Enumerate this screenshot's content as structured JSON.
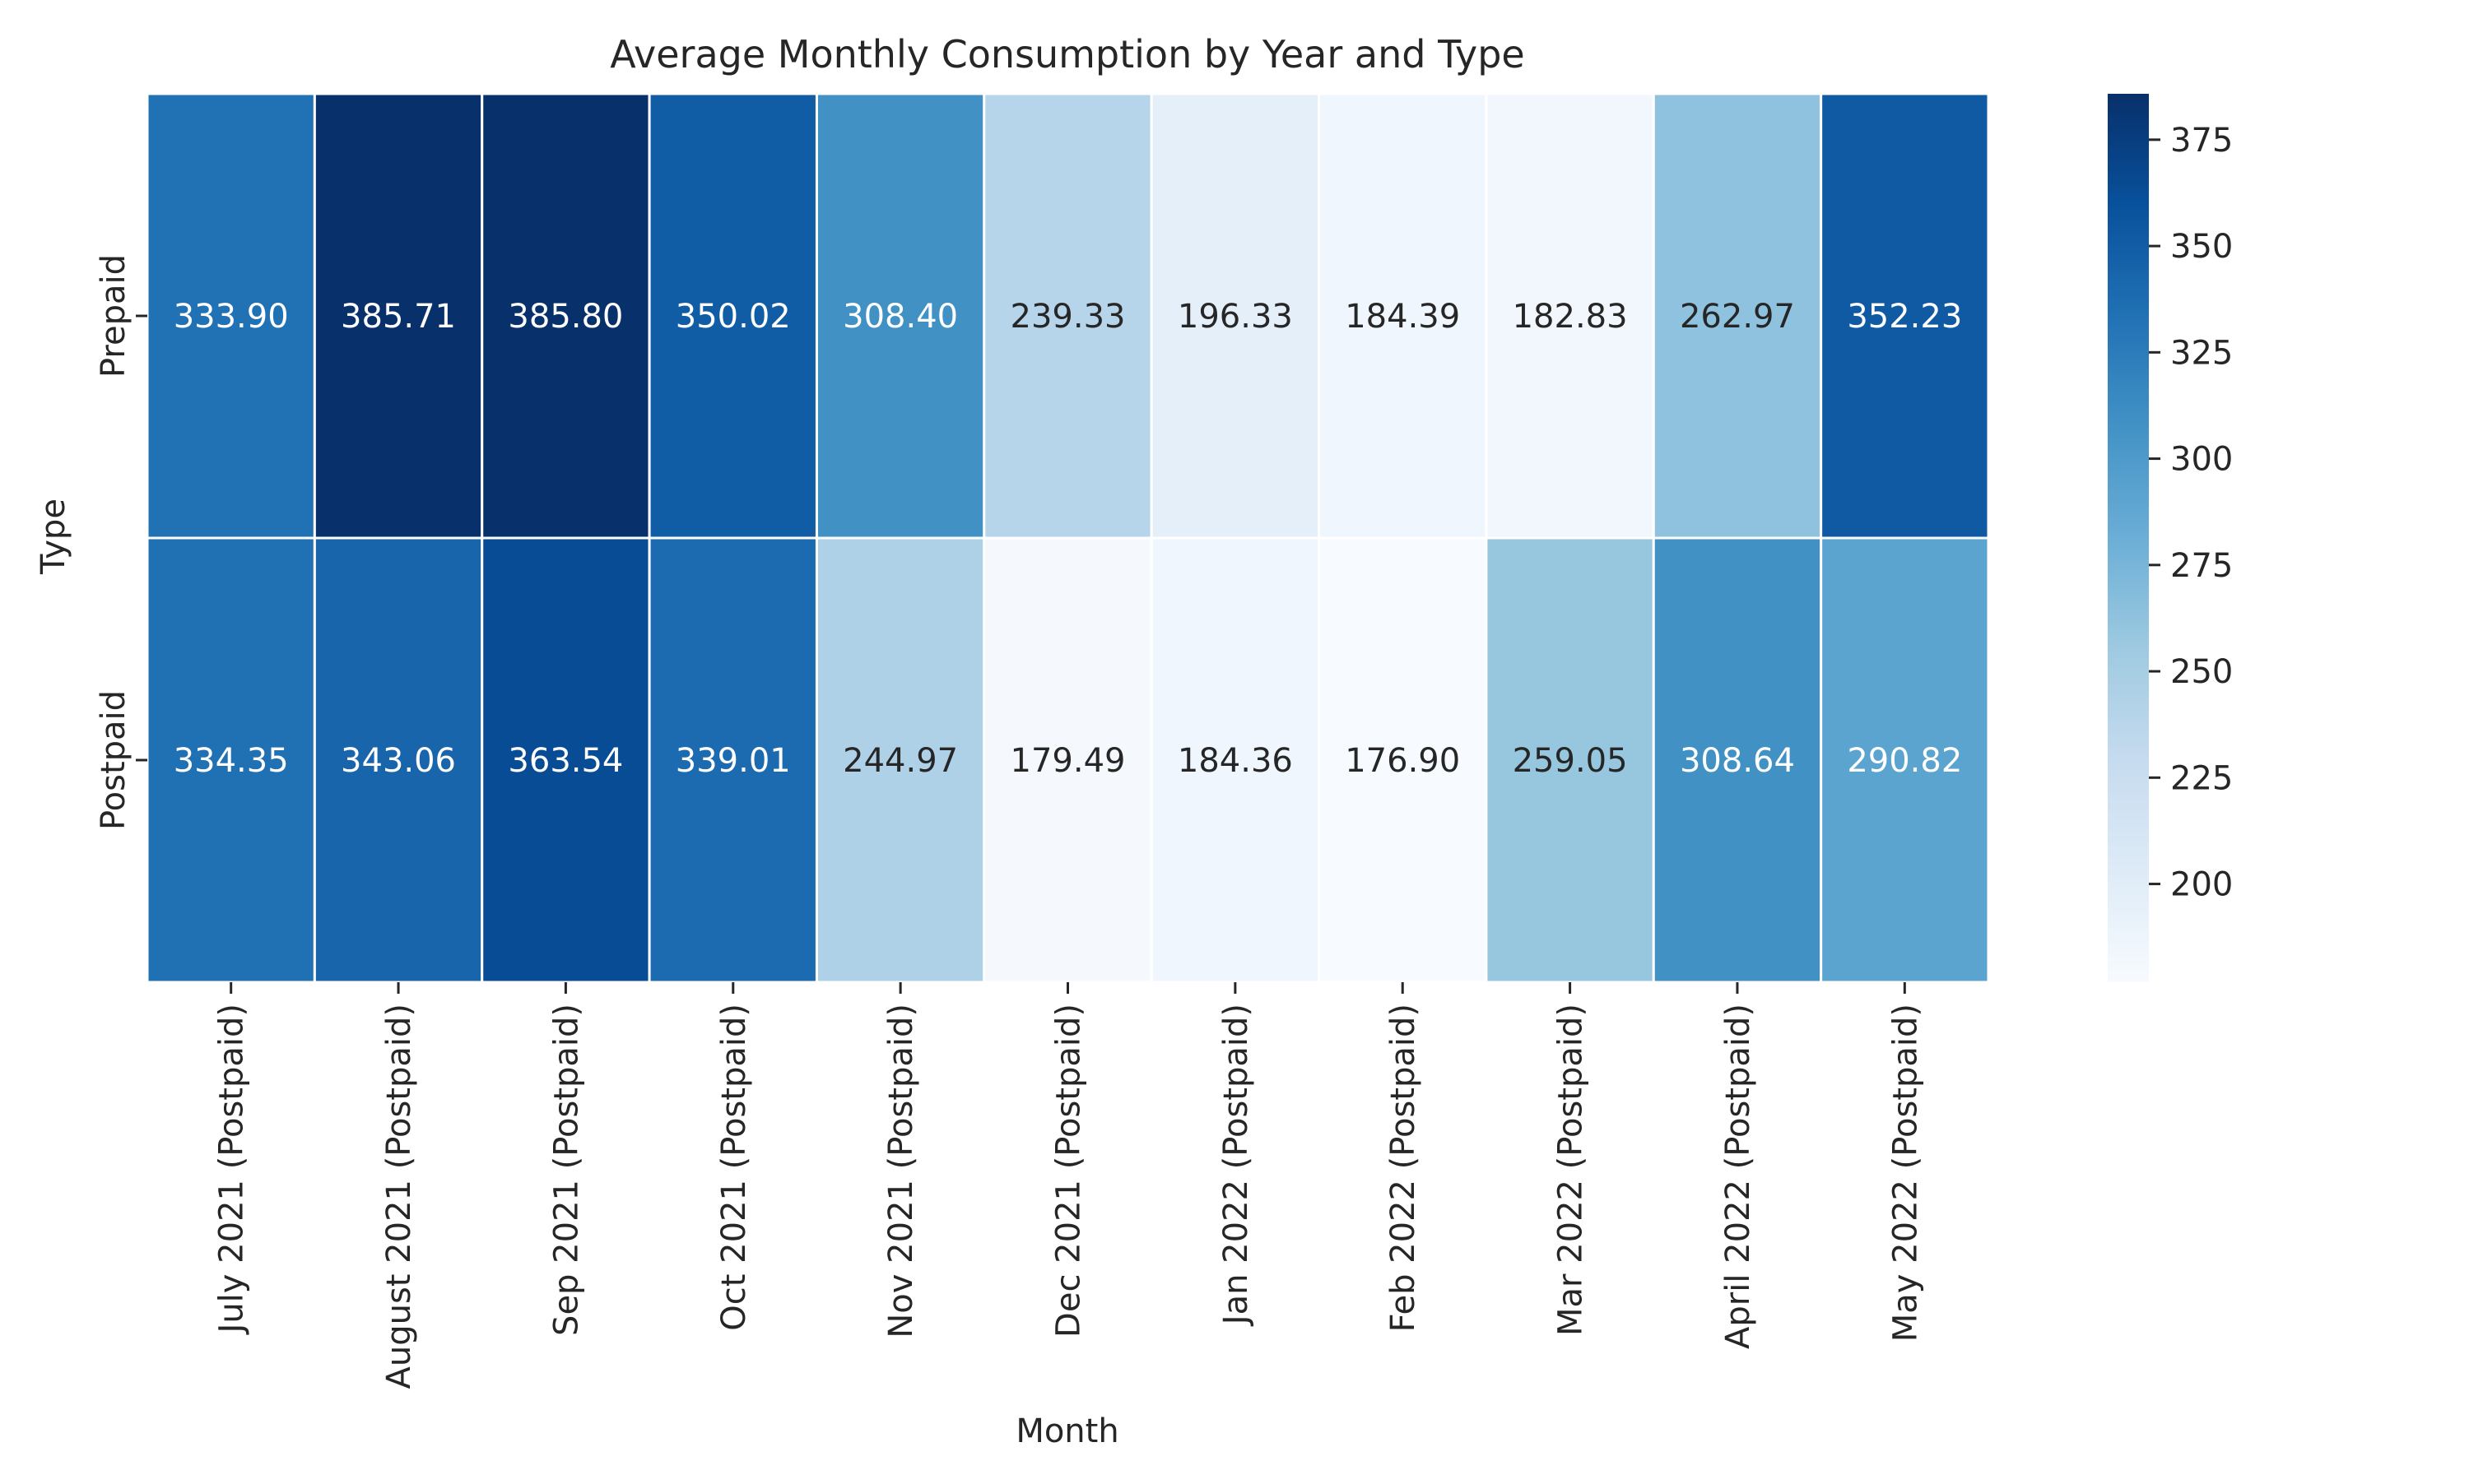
{
  "chart_data": {
    "type": "heatmap",
    "title": "Average Monthly Consumption by Year and Type",
    "xlabel": "Month",
    "ylabel": "Type",
    "rows": [
      "Prepaid",
      "Postpaid"
    ],
    "columns": [
      "July 2021 (Postpaid)",
      "August 2021 (Postpaid)",
      "Sep 2021 (Postpaid)",
      "Oct 2021 (Postpaid)",
      "Nov 2021 (Postpaid)",
      "Dec 2021 (Postpaid)",
      "Jan 2022 (Postpaid)",
      "Feb 2022 (Postpaid)",
      "Mar 2022 (Postpaid)",
      "April 2022 (Postpaid)",
      "May 2022 (Postpaid)"
    ],
    "values": [
      [
        333.9,
        385.71,
        385.8,
        350.02,
        308.4,
        239.33,
        196.33,
        184.39,
        182.83,
        262.97,
        352.23
      ],
      [
        334.35,
        343.06,
        363.54,
        339.01,
        244.97,
        179.49,
        184.36,
        176.9,
        259.05,
        308.64,
        290.82
      ]
    ],
    "value_format_decimals": 2,
    "colormap": "Blues",
    "color_range": [
      176.9,
      385.8
    ],
    "colorbar": {
      "ticks": [
        200,
        225,
        250,
        275,
        300,
        325,
        350,
        375
      ]
    },
    "annotation_colors": {
      "dark_text": "#262626",
      "light_text": "#ffffff"
    },
    "grid_line_color": "#ffffff"
  }
}
